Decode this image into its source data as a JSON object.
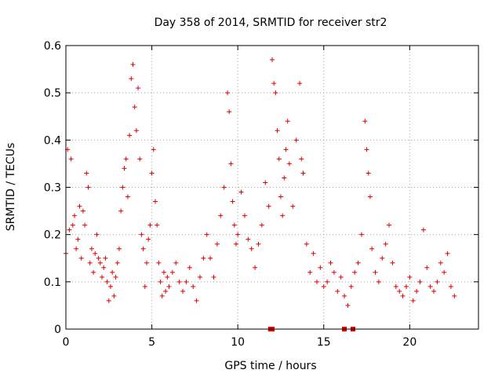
{
  "chart_data": {
    "type": "scatter",
    "title": "Day 358 of 2014, SRMTID for receiver str2",
    "xlabel": "GPS time / hours",
    "ylabel": "SRMTID / TECUs",
    "xlim": [
      0,
      24
    ],
    "ylim": [
      0,
      0.6
    ],
    "xticks": [
      0,
      5,
      10,
      15,
      20
    ],
    "yticks": [
      0,
      0.1,
      0.2,
      0.3,
      0.4,
      0.5,
      0.6
    ],
    "xtick_labels": [
      "0",
      "5",
      "10",
      "15",
      "20"
    ],
    "ytick_labels": [
      "0",
      "0.1",
      "0.2",
      "0.3",
      "0.4",
      "0.5",
      "0.6"
    ],
    "grid": true,
    "legend": "none",
    "marker": "plus",
    "color": "#e00000",
    "series": [
      {
        "name": "SRMTID",
        "x": [
          0.0,
          0.1,
          0.2,
          0.3,
          0.4,
          0.5,
          0.6,
          0.7,
          0.8,
          0.9,
          1.0,
          1.1,
          1.2,
          1.3,
          1.4,
          1.5,
          1.6,
          1.7,
          1.8,
          1.9,
          2.0,
          2.1,
          2.2,
          2.3,
          2.4,
          2.5,
          2.6,
          2.7,
          2.8,
          2.9,
          3.0,
          3.1,
          3.2,
          3.3,
          3.4,
          3.5,
          3.6,
          3.7,
          3.8,
          3.9,
          4.0,
          4.1,
          4.2,
          4.3,
          4.4,
          4.5,
          4.6,
          4.7,
          4.8,
          4.9,
          5.0,
          5.1,
          5.2,
          5.3,
          5.4,
          5.5,
          5.6,
          5.7,
          5.8,
          5.9,
          6.0,
          6.2,
          6.4,
          6.6,
          6.8,
          7.0,
          7.2,
          7.4,
          7.6,
          7.8,
          8.0,
          8.2,
          8.4,
          8.6,
          8.8,
          9.0,
          9.2,
          9.4,
          9.5,
          9.6,
          9.7,
          9.8,
          9.9,
          10.0,
          10.2,
          10.4,
          10.6,
          10.8,
          11.0,
          11.2,
          11.4,
          11.6,
          11.8,
          12.0,
          12.1,
          12.2,
          12.3,
          12.4,
          12.5,
          12.6,
          12.7,
          12.8,
          12.9,
          13.0,
          13.2,
          13.4,
          13.6,
          13.7,
          13.8,
          14.0,
          14.2,
          14.4,
          14.6,
          14.8,
          15.0,
          15.2,
          15.4,
          15.6,
          15.8,
          16.0,
          16.2,
          16.4,
          16.6,
          16.8,
          17.0,
          17.2,
          17.4,
          17.5,
          17.6,
          17.7,
          17.8,
          18.0,
          18.2,
          18.4,
          18.6,
          18.8,
          19.0,
          19.2,
          19.4,
          19.6,
          19.8,
          20.0,
          20.2,
          20.4,
          20.6,
          20.8,
          21.0,
          21.2,
          21.4,
          21.6,
          21.8,
          22.0,
          22.2,
          22.4,
          22.6
        ],
        "y": [
          0.16,
          0.38,
          0.21,
          0.36,
          0.22,
          0.24,
          0.17,
          0.19,
          0.26,
          0.15,
          0.25,
          0.22,
          0.33,
          0.3,
          0.14,
          0.17,
          0.12,
          0.16,
          0.2,
          0.15,
          0.14,
          0.11,
          0.13,
          0.15,
          0.1,
          0.06,
          0.09,
          0.12,
          0.07,
          0.11,
          0.14,
          0.17,
          0.25,
          0.3,
          0.34,
          0.36,
          0.28,
          0.41,
          0.53,
          0.56,
          0.47,
          0.42,
          0.51,
          0.36,
          0.2,
          0.17,
          0.09,
          0.14,
          0.19,
          0.22,
          0.33,
          0.38,
          0.27,
          0.22,
          0.14,
          0.1,
          0.07,
          0.12,
          0.08,
          0.11,
          0.09,
          0.12,
          0.14,
          0.1,
          0.08,
          0.1,
          0.13,
          0.09,
          0.06,
          0.11,
          0.15,
          0.2,
          0.15,
          0.11,
          0.18,
          0.24,
          0.3,
          0.5,
          0.46,
          0.35,
          0.27,
          0.22,
          0.18,
          0.2,
          0.29,
          0.24,
          0.19,
          0.17,
          0.13,
          0.18,
          0.22,
          0.31,
          0.26,
          0.57,
          0.52,
          0.5,
          0.42,
          0.36,
          0.28,
          0.24,
          0.32,
          0.38,
          0.44,
          0.35,
          0.26,
          0.4,
          0.52,
          0.36,
          0.33,
          0.18,
          0.12,
          0.16,
          0.1,
          0.13,
          0.09,
          0.1,
          0.14,
          0.12,
          0.08,
          0.11,
          0.07,
          0.05,
          0.09,
          0.12,
          0.14,
          0.2,
          0.44,
          0.38,
          0.33,
          0.28,
          0.17,
          0.12,
          0.1,
          0.15,
          0.18,
          0.22,
          0.14,
          0.09,
          0.08,
          0.07,
          0.09,
          0.11,
          0.06,
          0.08,
          0.1,
          0.21,
          0.13,
          0.09,
          0.08,
          0.1,
          0.14,
          0.12,
          0.16,
          0.09,
          0.07
        ]
      }
    ],
    "annotations": [
      {
        "type": "square-marker",
        "x": 11.9,
        "y": 0
      },
      {
        "type": "square-marker",
        "x": 12.0,
        "y": 0
      },
      {
        "type": "square-marker",
        "x": 16.2,
        "y": 0
      },
      {
        "type": "square-marker",
        "x": 16.7,
        "y": 0
      }
    ]
  }
}
